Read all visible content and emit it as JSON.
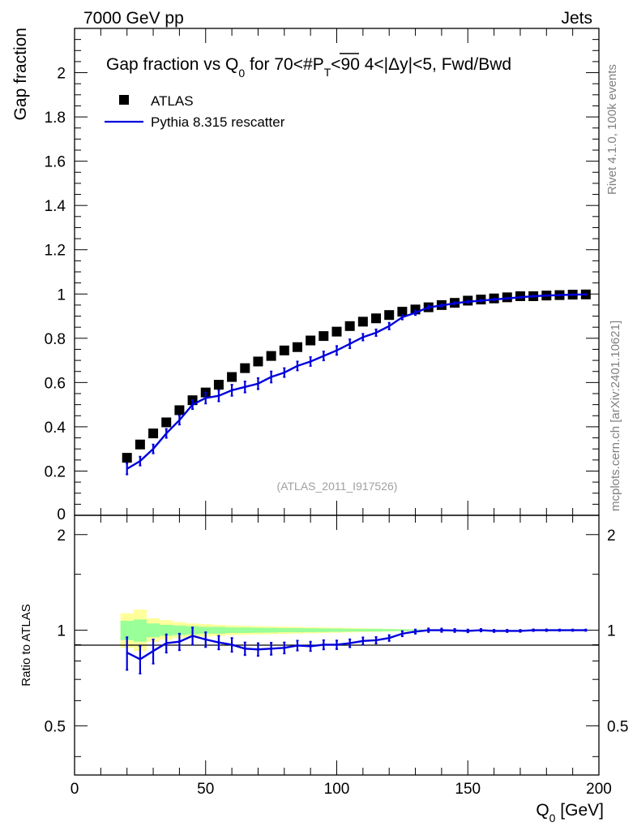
{
  "header": {
    "left": "7000 GeV pp",
    "right": "Jets"
  },
  "side_labels": {
    "upper": "Rivet 4.1.0,  100k events",
    "lower": "mcplots.cern.ch [arXiv:2401.10621]"
  },
  "chart_data": [
    {
      "type": "scatter",
      "panel": "main",
      "title_main": "Gap fraction vs Q",
      "title_sub": "0",
      "title_rest": " for 70<#",
      "title_pt": "P",
      "title_pt_sub": "T",
      "title_tail": "<90  4<|Δy|<5, Fwd/Bwd",
      "ylabel": "Gap fraction",
      "xlabel_main": "Q",
      "xlabel_sub": "0",
      "xlabel_unit": " [GeV]",
      "watermark": "(ATLAS_2011_I917526)",
      "xlim": [
        0,
        200
      ],
      "ylim": [
        0,
        2.2
      ],
      "yticks": [
        0.2,
        0.4,
        0.6,
        0.8,
        1,
        1.2,
        1.4,
        1.6,
        1.8,
        2
      ],
      "ytick_labels": [
        "0.2",
        "0.4",
        "0.6",
        "0.8",
        "1",
        "1.2",
        "1.4",
        "1.6",
        "1.8",
        "2"
      ],
      "ytick_zero_label": "0",
      "legend": [
        {
          "name": "ATLAS",
          "marker": "square",
          "color": "#000000"
        },
        {
          "name": "Pythia 8.315 rescatter",
          "marker": "line",
          "color": "#0000dd"
        }
      ],
      "x": [
        20,
        25,
        30,
        35,
        40,
        45,
        50,
        55,
        60,
        65,
        70,
        75,
        80,
        85,
        90,
        95,
        100,
        105,
        110,
        115,
        120,
        125,
        130,
        135,
        140,
        145,
        150,
        155,
        160,
        165,
        170,
        175,
        180,
        185,
        190,
        195
      ],
      "series": [
        {
          "name": "ATLAS",
          "values": [
            0.26,
            0.32,
            0.37,
            0.42,
            0.475,
            0.52,
            0.555,
            0.59,
            0.625,
            0.665,
            0.695,
            0.72,
            0.745,
            0.76,
            0.79,
            0.81,
            0.83,
            0.855,
            0.875,
            0.89,
            0.905,
            0.92,
            0.93,
            0.94,
            0.95,
            0.96,
            0.97,
            0.975,
            0.98,
            0.985,
            0.99,
            0.99,
            0.993,
            0.995,
            0.997,
            0.998
          ]
        },
        {
          "name": "Pythia 8.315 rescatter",
          "values": [
            0.21,
            0.245,
            0.3,
            0.37,
            0.43,
            0.5,
            0.53,
            0.54,
            0.565,
            0.58,
            0.595,
            0.625,
            0.645,
            0.675,
            0.695,
            0.72,
            0.745,
            0.775,
            0.805,
            0.825,
            0.855,
            0.895,
            0.915,
            0.94,
            0.948,
            0.958,
            0.965,
            0.97,
            0.975,
            0.98,
            0.985,
            0.99,
            0.993,
            0.995,
            0.997,
            0.998
          ],
          "errors": [
            0.025,
            0.02,
            0.02,
            0.02,
            0.02,
            0.02,
            0.025,
            0.025,
            0.025,
            0.025,
            0.025,
            0.025,
            0.02,
            0.02,
            0.02,
            0.02,
            0.02,
            0.02,
            0.015,
            0.015,
            0.015,
            0.01,
            0.01,
            0.008,
            0.006,
            0.005,
            0.005,
            0.004,
            0.004,
            0.003,
            0.003,
            0.003,
            0.002,
            0.002,
            0.002,
            0.002
          ]
        }
      ]
    },
    {
      "type": "line",
      "panel": "ratio",
      "ylabel": "Ratio to ATLAS",
      "xlim": [
        0,
        200
      ],
      "ylim": [
        0.35,
        2.3
      ],
      "ylog": true,
      "yticks": [
        0.5,
        1,
        2
      ],
      "ytick_labels": [
        "0.5",
        "1",
        "2"
      ],
      "xticks": [
        0,
        50,
        100,
        150,
        200
      ],
      "xtick_labels": [
        "0",
        "50",
        "100",
        "150",
        "200"
      ],
      "x": [
        20,
        25,
        30,
        35,
        40,
        45,
        50,
        55,
        60,
        65,
        70,
        75,
        80,
        85,
        90,
        95,
        100,
        105,
        110,
        115,
        120,
        125,
        130,
        135,
        140,
        145,
        150,
        155,
        160,
        165,
        170,
        175,
        180,
        185,
        190,
        195
      ],
      "series": [
        {
          "name": "Pythia 8.315 rescatter / ATLAS",
          "values": [
            0.85,
            0.81,
            0.86,
            0.91,
            0.92,
            0.96,
            0.935,
            0.915,
            0.9,
            0.875,
            0.87,
            0.875,
            0.88,
            0.895,
            0.89,
            0.9,
            0.9,
            0.91,
            0.925,
            0.93,
            0.945,
            0.975,
            0.99,
            1.0,
            1.0,
            0.998,
            0.995,
            1.0,
            0.995,
            0.995,
            0.995,
            1.0,
            1.0,
            1.0,
            1.0,
            1.0
          ],
          "errors": [
            0.1,
            0.08,
            0.075,
            0.06,
            0.055,
            0.06,
            0.05,
            0.045,
            0.045,
            0.04,
            0.04,
            0.038,
            0.035,
            0.032,
            0.03,
            0.03,
            0.028,
            0.026,
            0.024,
            0.022,
            0.02,
            0.018,
            0.015,
            0.013,
            0.012,
            0.011,
            0.01,
            0.009,
            0.008,
            0.008,
            0.007,
            0.006,
            0.006,
            0.005,
            0.005,
            0.005
          ]
        }
      ],
      "bands": {
        "x_edges": [
          17.5,
          22.5,
          27.5,
          32.5,
          37.5,
          42.5,
          47.5,
          52.5,
          57.5,
          62.5,
          67.5,
          72.5,
          77.5,
          82.5,
          87.5,
          92.5,
          97.5,
          102.5,
          107.5,
          112.5,
          117.5,
          122.5,
          127.5,
          132.5,
          137.5
        ],
        "green_lo": [
          0.93,
          0.92,
          0.95,
          0.96,
          0.965,
          0.97,
          0.975,
          0.975,
          0.98,
          0.98,
          0.982,
          0.983,
          0.985,
          0.985,
          0.986,
          0.987,
          0.988,
          0.99,
          0.99,
          0.99,
          0.992,
          0.993,
          0.995,
          0.997
        ],
        "green_hi": [
          1.07,
          1.08,
          1.05,
          1.04,
          1.035,
          1.03,
          1.025,
          1.025,
          1.02,
          1.02,
          1.018,
          1.017,
          1.015,
          1.015,
          1.014,
          1.013,
          1.012,
          1.01,
          1.01,
          1.01,
          1.008,
          1.007,
          1.005,
          1.003
        ],
        "yellow_lo": [
          0.88,
          0.86,
          0.92,
          0.935,
          0.945,
          0.95,
          0.955,
          0.96,
          0.965,
          0.967,
          0.97,
          0.972,
          0.974,
          0.976,
          0.978,
          0.98,
          0.982,
          0.984,
          0.986,
          0.988,
          0.99,
          0.992,
          0.994,
          0.996
        ],
        "yellow_hi": [
          1.13,
          1.16,
          1.09,
          1.075,
          1.06,
          1.05,
          1.045,
          1.04,
          1.035,
          1.033,
          1.03,
          1.028,
          1.026,
          1.024,
          1.022,
          1.02,
          1.018,
          1.016,
          1.014,
          1.012,
          1.01,
          1.008,
          1.006,
          1.004
        ],
        "green_color": "#99ff99",
        "yellow_color": "#ffff99"
      }
    }
  ]
}
